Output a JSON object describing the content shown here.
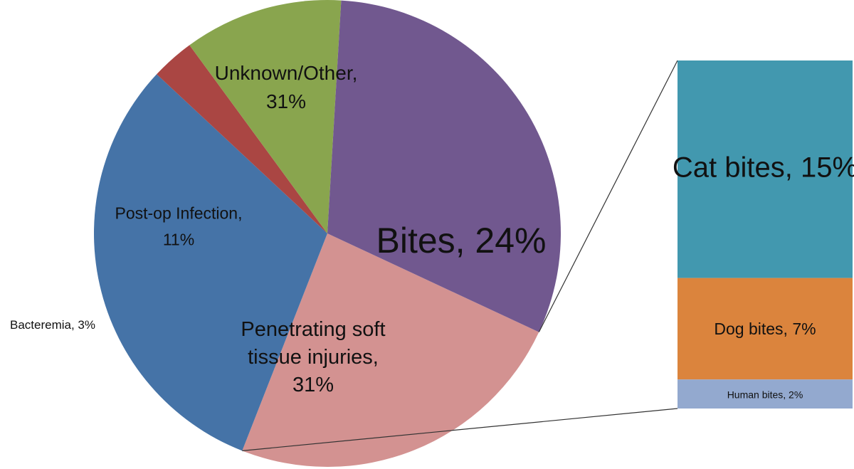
{
  "chart_data": {
    "type": "pie",
    "subtype": "bar-of-pie",
    "title": "",
    "slices": [
      {
        "label": "Bites",
        "value": 24,
        "display": "Bites, 24%",
        "color": "#D39291"
      },
      {
        "label": "Penetrating soft tissue injuries",
        "value": 31,
        "display": "Penetrating soft tissue injuries, 31%",
        "color": "#4573A7"
      },
      {
        "label": "Bacteremia",
        "value": 3,
        "display": "Bacteremia, 3%",
        "color": "#AA4643"
      },
      {
        "label": "Post-op Infection",
        "value": 11,
        "display": "Post-op Infection, 11%",
        "color": "#89A54E"
      },
      {
        "label": "Unknown/Other",
        "value": 31,
        "display": "Unknown/Other, 31%",
        "color": "#71588F"
      }
    ],
    "breakdown": {
      "of": "Bites",
      "segments": [
        {
          "label": "Cat bites",
          "value": 15,
          "display": "Cat bites, 15%",
          "color": "#4298AF"
        },
        {
          "label": "Dog bites",
          "value": 7,
          "display": "Dog bites, 7%",
          "color": "#DB843D"
        },
        {
          "label": "Human bites",
          "value": 2,
          "display": "Human bites, 2%",
          "color": "#93A9CF"
        }
      ]
    }
  }
}
